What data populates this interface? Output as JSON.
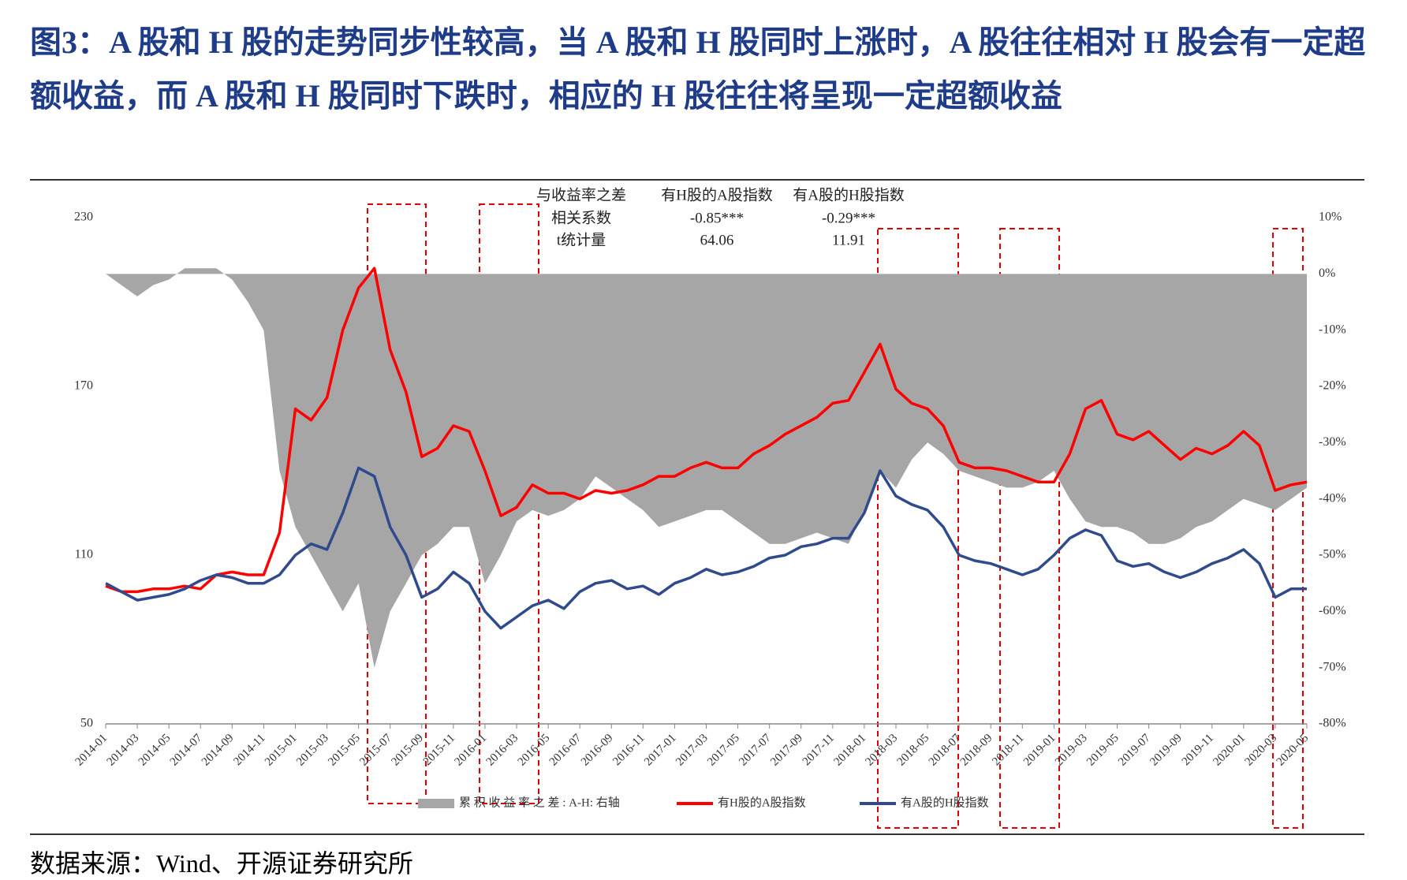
{
  "chart_data": {
    "type": "line",
    "title": "图3：A 股和 H 股的走势同步性较高，当 A 股和 H 股同时上涨时，A 股往往相对 H 股会有一定超额收益，而 A 股和 H 股同时下跌时，相应的 H 股往往将呈现一定超额收益",
    "source": "数据来源：Wind、开源证券研究所",
    "categories": [
      "2014-01",
      null,
      "2014-03",
      null,
      "2014-05",
      null,
      "2014-07",
      null,
      "2014-09",
      null,
      "2014-11",
      null,
      "2015-01",
      null,
      "2015-03",
      null,
      "2015-05",
      null,
      "2015-07",
      null,
      "2015-09",
      null,
      "2015-11",
      null,
      "2016-01",
      null,
      "2016-03",
      null,
      "2016-05",
      null,
      "2016-07",
      null,
      "2016-09",
      null,
      "2016-11",
      null,
      "2017-01",
      null,
      "2017-03",
      null,
      "2017-05",
      null,
      "2017-07",
      null,
      "2017-09",
      null,
      "2017-11",
      null,
      "2018-01",
      null,
      "2018-03",
      null,
      "2018-05",
      null,
      "2018-07",
      null,
      "2018-09",
      null,
      "2018-11",
      null,
      "2019-01",
      null,
      "2019-03",
      null,
      "2019-05",
      null,
      "2019-07",
      null,
      "2019-09",
      null,
      "2019-11",
      null,
      "2020-01",
      null,
      "2020-03",
      null,
      "2020-05"
    ],
    "ylim": [
      50,
      230
    ],
    "yticks": [
      50,
      110,
      170,
      230
    ],
    "y2lim": [
      -80,
      10
    ],
    "y2ticks": [
      {
        "value": -80,
        "label": "-80%"
      },
      {
        "value": -70,
        "label": "-70%"
      },
      {
        "value": -60,
        "label": "-60%"
      },
      {
        "value": -50,
        "label": "-50%"
      },
      {
        "value": -40,
        "label": "-40%"
      },
      {
        "value": -30,
        "label": "-30%"
      },
      {
        "value": -20,
        "label": "-20%"
      },
      {
        "value": -10,
        "label": "-10%"
      },
      {
        "value": 0,
        "label": "0%"
      },
      {
        "value": 10,
        "label": "10%"
      }
    ],
    "series": [
      {
        "name": "累 积 收 益 率 之 差 : A-H: 右轴",
        "type": "area",
        "axis": "y2",
        "color": "#a6a6a6",
        "values": [
          0,
          -2,
          -4,
          -2,
          -1,
          1,
          1,
          1,
          -1,
          -5,
          -10,
          -35,
          -45,
          -50,
          -55,
          -60,
          -55,
          -70,
          -60,
          -55,
          -50,
          -48,
          -45,
          -45,
          -55,
          -50,
          -44,
          -42,
          -43,
          -42,
          -40,
          -36,
          -38,
          -40,
          -42,
          -45,
          -44,
          -43,
          -42,
          -42,
          -44,
          -46,
          -48,
          -48,
          -47,
          -46,
          -47,
          -48,
          -42,
          -35,
          -38,
          -33,
          -30,
          -32,
          -35,
          -36,
          -37,
          -38,
          -38,
          -37,
          -35,
          -40,
          -44,
          -45,
          -45,
          -46,
          -48,
          -48,
          -47,
          -45,
          -44,
          -42,
          -40,
          -41,
          -42,
          -40,
          -38
        ]
      },
      {
        "name": "有H股的A股指数",
        "type": "line",
        "color": "#ff0000",
        "values": [
          99,
          97,
          97,
          98,
          98,
          99,
          98,
          103,
          104,
          103,
          103,
          118,
          162,
          158,
          166,
          190,
          205,
          212,
          183,
          168,
          145,
          148,
          156,
          154,
          140,
          124,
          127,
          135,
          132,
          132,
          130,
          133,
          132,
          133,
          135,
          138,
          138,
          141,
          143,
          141,
          141,
          146,
          149,
          153,
          156,
          159,
          164,
          165,
          175,
          185,
          169,
          164,
          162,
          156,
          143,
          141,
          141,
          140,
          138,
          136,
          136,
          146,
          162,
          165,
          153,
          151,
          154,
          149,
          144,
          148,
          146,
          149,
          154,
          149,
          133,
          135,
          136
        ]
      },
      {
        "name": "有A股的H股指数",
        "type": "line",
        "color": "#2f4b8c",
        "values": [
          100,
          97,
          94,
          95,
          96,
          98,
          101,
          103,
          102,
          100,
          100,
          103,
          110,
          114,
          112,
          125,
          141,
          138,
          120,
          110,
          95,
          98,
          104,
          100,
          90,
          84,
          88,
          92,
          94,
          91,
          97,
          100,
          101,
          98,
          99,
          96,
          100,
          102,
          105,
          103,
          104,
          106,
          109,
          110,
          113,
          114,
          116,
          116,
          125,
          140,
          131,
          128,
          126,
          120,
          110,
          108,
          107,
          105,
          103,
          105,
          110,
          116,
          119,
          117,
          108,
          106,
          107,
          104,
          102,
          104,
          107,
          109,
          112,
          107,
          95,
          98,
          98
        ]
      }
    ],
    "table": {
      "header": [
        "与收益率之差",
        "有H股的A股指数",
        "有A股的H股指数"
      ],
      "rows": [
        [
          "相关系数",
          "-0.85***",
          "-0.29***"
        ],
        [
          "t统计量",
          "64.06",
          "11.91"
        ]
      ]
    }
  }
}
